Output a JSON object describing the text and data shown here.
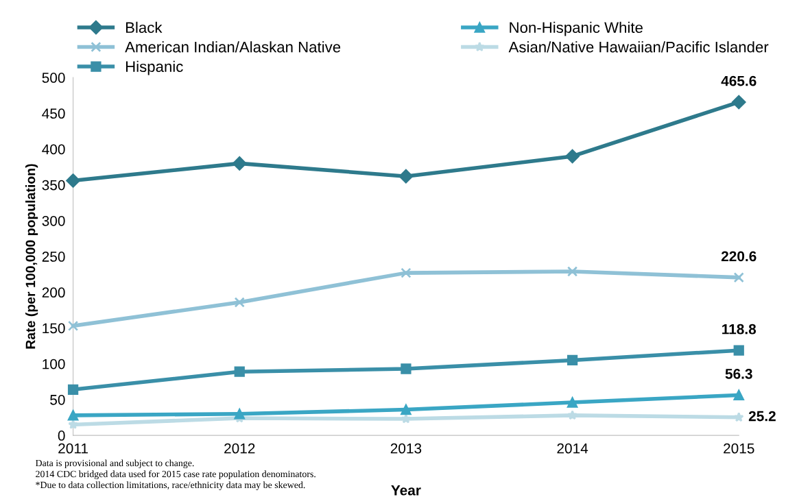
{
  "chart_data": {
    "type": "line",
    "xlabel": "Year",
    "ylabel": "Rate (per 100,000 population)",
    "x": [
      2011,
      2012,
      2013,
      2014,
      2015
    ],
    "xlim": [
      2011,
      2015
    ],
    "xticks": [
      2011,
      2012,
      2013,
      2014,
      2015
    ],
    "ylim": [
      0,
      500
    ],
    "yticks": [
      0,
      50,
      100,
      150,
      200,
      250,
      300,
      350,
      400,
      450,
      500
    ],
    "grid": false,
    "legend": "top",
    "line_style": "solid",
    "series": [
      {
        "name": "Black",
        "color": "#2e7a8c",
        "marker": "diamond",
        "values": [
          356,
          380,
          362,
          390,
          465.6
        ],
        "value_labels": [
          null,
          null,
          null,
          null,
          "465.6"
        ]
      },
      {
        "name": "Non-Hispanic White",
        "color": "#3aa6c4",
        "marker": "triangle",
        "values": [
          28,
          30,
          36,
          46,
          56.3
        ],
        "value_labels": [
          null,
          null,
          null,
          null,
          "56.3"
        ]
      },
      {
        "name": "American Indian/Alaskan Native",
        "color": "#8fc1d6",
        "marker": "cross",
        "values": [
          153,
          186,
          227,
          229,
          220.6
        ],
        "value_labels": [
          null,
          null,
          null,
          null,
          "220.6"
        ]
      },
      {
        "name": "Asian/Native Hawaiian/Pacific Islander",
        "color": "#bcdbe5",
        "marker": "star",
        "values": [
          15,
          24,
          23,
          28,
          25.2
        ],
        "value_labels": [
          null,
          null,
          null,
          null,
          "25.2"
        ]
      },
      {
        "name": "Hispanic",
        "color": "#3a8fa8",
        "marker": "square",
        "values": [
          64,
          89,
          93,
          105,
          118.8
        ],
        "value_labels": [
          null,
          null,
          null,
          null,
          "118.8"
        ]
      }
    ],
    "annotations": [
      "Data is provisional and subject to change.",
      "2014 CDC bridged data used for 2015 case rate population denominators.",
      "*Due to data collection limitations, race/ethnicity data may be skewed."
    ]
  }
}
